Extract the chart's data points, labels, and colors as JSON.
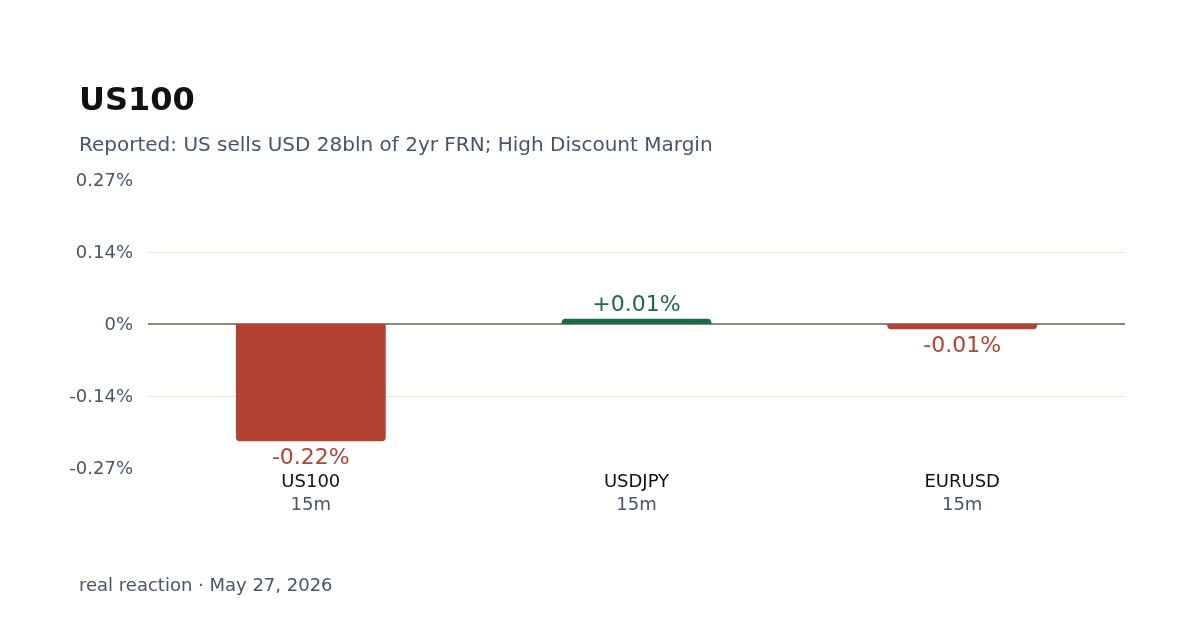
{
  "chart_data": {
    "type": "bar",
    "title": "US100",
    "subtitle": "Reported: US sells USD 28bln of 2yr FRN; High Discount Margin",
    "categories": [
      "US100\n15m",
      "USDJPY\n15m",
      "EURUSD\n15m"
    ],
    "values": [
      -0.22,
      0.01,
      -0.01
    ],
    "colors": [
      "#b34232",
      "#1a6b45",
      "#b34232"
    ],
    "value_labels": [
      "-0.22%",
      "+0.01%",
      "-0.01%"
    ],
    "ylim": [
      -0.27,
      0.27
    ],
    "yticks": [
      {
        "value": -0.27,
        "label": "-0.27%"
      },
      {
        "value": -0.135,
        "label": "-0.14%"
      },
      {
        "value": 0,
        "label": "0%"
      },
      {
        "value": 0.135,
        "label": "0.14%"
      },
      {
        "value": 0.27,
        "label": "0.27%"
      }
    ],
    "grid": "y",
    "annotations": [
      "real reaction · May 27, 2026"
    ]
  }
}
